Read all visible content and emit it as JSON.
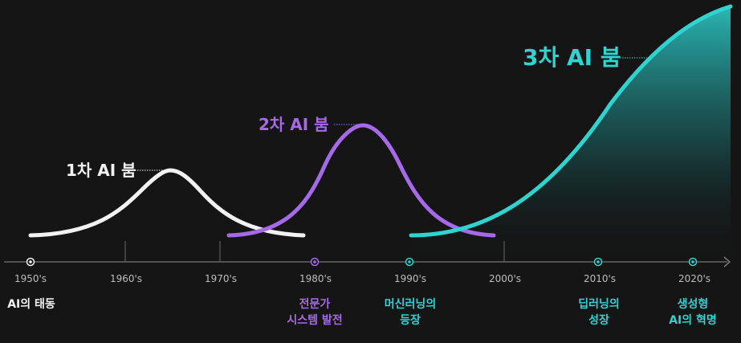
{
  "colors": {
    "background": "#151515",
    "axis": "#8c8c8c",
    "first_boom": "#f2f2f2",
    "second_boom": "#a66ae8",
    "third_boom": "#2fd3d0"
  },
  "booms": [
    {
      "label": "1차 AI 붐"
    },
    {
      "label": "2차 AI 붐"
    },
    {
      "label": "3차 AI 붐"
    }
  ],
  "decades": [
    "1950's",
    "1960's",
    "1970's",
    "1980's",
    "1990's",
    "2000's",
    "2010's",
    "2020's"
  ],
  "milestones": [
    {
      "lines": [
        "AI의 태동"
      ],
      "color": "#f2f2f2"
    },
    {
      "lines": [
        "전문가",
        "시스템 발전"
      ],
      "color": "#a66ae8"
    },
    {
      "lines": [
        "머신러닝의",
        "등장"
      ],
      "color": "#2fd3d0"
    },
    {
      "lines": [
        "딥러닝의",
        "성장"
      ],
      "color": "#2fd3d0"
    },
    {
      "lines": [
        "생성형",
        "AI의 혁명"
      ],
      "color": "#2fd3d0"
    }
  ]
}
